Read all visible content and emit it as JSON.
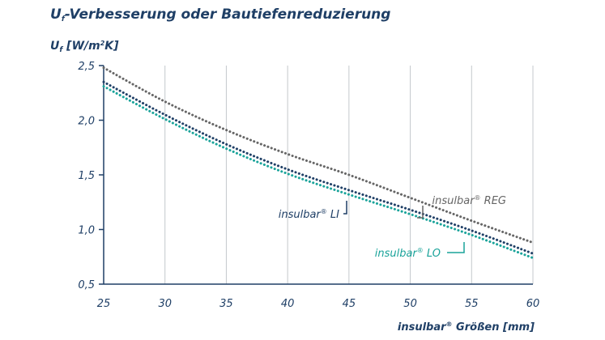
{
  "chart_data": {
    "type": "line",
    "title": {
      "main": "U",
      "sub": "f",
      "rest": "-Verbesserung oder Bautiefenreduzierung"
    },
    "ylabel": {
      "main": "U",
      "sub": "f",
      "rest1": " [W/m",
      "sup": "2",
      "rest2": "K]"
    },
    "xlabel": {
      "name": "insulbar",
      "reg": "®",
      "rest": " Größen [mm]"
    },
    "x": [
      25,
      30,
      35,
      40,
      45,
      50,
      55,
      60
    ],
    "xlim": [
      25,
      60
    ],
    "ylim": [
      0.5,
      2.5
    ],
    "x_ticks": [
      "25",
      "30",
      "35",
      "40",
      "45",
      "50",
      "55",
      "60"
    ],
    "y_ticks": [
      {
        "value": 0.5,
        "label": "0,5"
      },
      {
        "value": 1.0,
        "label": "1,0"
      },
      {
        "value": 1.5,
        "label": "1,5"
      },
      {
        "value": 2.0,
        "label": "2,0"
      },
      {
        "value": 2.5,
        "label": "2,5"
      }
    ],
    "grid": "vertical",
    "series": [
      {
        "name": "insulbar® REG",
        "label_base": "insulbar",
        "label_reg": "®",
        "label_suffix": " REG",
        "color": "#666666",
        "values": [
          2.48,
          2.17,
          1.91,
          1.69,
          1.5,
          1.29,
          1.08,
          0.88
        ]
      },
      {
        "name": "insulbar® LI",
        "label_base": "insulbar",
        "label_reg": "®",
        "label_suffix": " LI",
        "color": "#1f3f66",
        "values": [
          2.35,
          2.05,
          1.78,
          1.55,
          1.36,
          1.18,
          0.99,
          0.78
        ]
      },
      {
        "name": "insulbar® LO",
        "label_base": "insulbar",
        "label_reg": "®",
        "label_suffix": " LO",
        "color": "#1aa39a",
        "values": [
          2.31,
          2.01,
          1.74,
          1.51,
          1.32,
          1.14,
          0.95,
          0.74
        ]
      }
    ]
  }
}
